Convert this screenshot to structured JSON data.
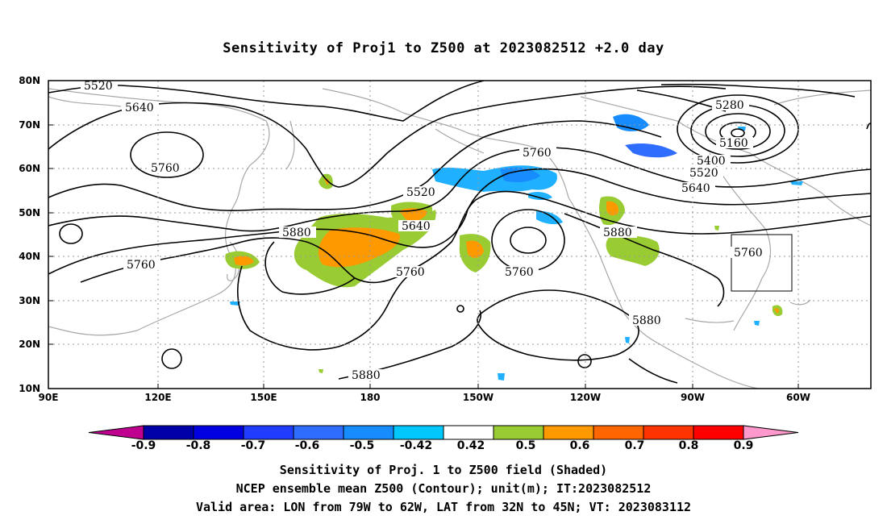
{
  "title": "Sensitivity of Proj1 to Z500 at 2023082512 +2.0 day",
  "map": {
    "lat_labels": [
      "80N",
      "70N",
      "60N",
      "50N",
      "40N",
      "30N",
      "20N",
      "10N"
    ],
    "lon_labels": [
      "90E",
      "120E",
      "150E",
      "180",
      "150W",
      "120W",
      "90W",
      "60W"
    ],
    "contour_labels": [
      "5520",
      "5640",
      "5760",
      "5280",
      "5160",
      "5400",
      "5520",
      "5640",
      "5760",
      "5520",
      "5640",
      "5880",
      "5760",
      "5760",
      "5880",
      "5760",
      "5880",
      "5880"
    ],
    "valid_box": {
      "lon_from": "79W",
      "lon_to": "62W",
      "lat_from": "32N",
      "lat_to": "45N"
    }
  },
  "colorbar": {
    "labels": [
      "-0.9",
      "-0.8",
      "-0.7",
      "-0.6",
      "-0.5",
      "-0.42",
      "0.42",
      "0.5",
      "0.6",
      "0.7",
      "0.8",
      "0.9"
    ],
    "colors": [
      "#c0008f",
      "#0000a8",
      "#0000e0",
      "#1f3cff",
      "#2f6dff",
      "#178cff",
      "#00c8ff",
      "#ffffff",
      "#99cc33",
      "#ff9900",
      "#ff6600",
      "#ff3300",
      "#ff0000",
      "#ff99cc"
    ]
  },
  "captions": {
    "line1": "Sensitivity of Proj. 1 to Z500 field (Shaded)",
    "line2": "NCEP ensemble mean Z500 (Contour); unit(m); IT:2023082512",
    "line3": "Valid area: LON from 79W to 62W, LAT from 32N to 45N; VT: 2023083112"
  }
}
